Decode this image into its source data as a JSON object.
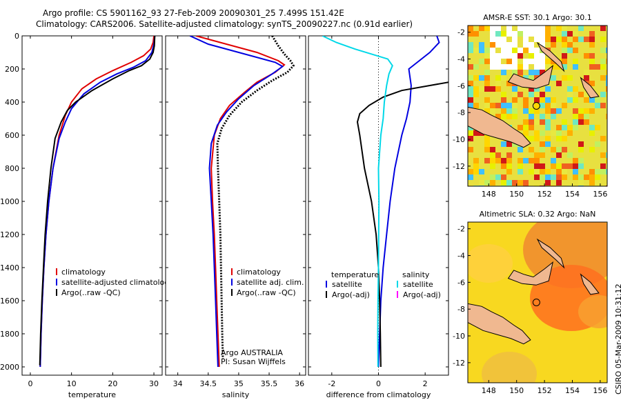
{
  "header": {
    "line1": "Argo profile: CS 5901162_93 27-Feb-2009 20090301_25 7.499S 151.42E",
    "line2": "Climatology: CARS2006. Satellite-adjusted climatology: synTS_20090227.nc (0.91d earlier)"
  },
  "chart_data": [
    {
      "type": "line",
      "name": "temperature",
      "xlabel": "temperature",
      "xlim": [
        -2,
        32
      ],
      "xticks": [
        0,
        10,
        20,
        30
      ],
      "ylim": [
        0,
        2050
      ],
      "yticks": [
        0,
        200,
        400,
        600,
        800,
        1000,
        1200,
        1400,
        1600,
        1800,
        2000
      ],
      "reversed_y": true,
      "legend": [
        "climatology",
        "satellite-adjusted climatology",
        "Argo(..raw -QC)"
      ],
      "series": [
        {
          "name": "climatology",
          "color": "#e00000",
          "points": [
            [
              30,
              0
            ],
            [
              29.8,
              40
            ],
            [
              29.2,
              80
            ],
            [
              27.5,
              120
            ],
            [
              24.5,
              160
            ],
            [
              20,
              210
            ],
            [
              16,
              260
            ],
            [
              12.5,
              320
            ],
            [
              10,
              400
            ],
            [
              8.5,
              480
            ],
            [
              7,
              600
            ],
            [
              5.5,
              800
            ],
            [
              4.5,
              1000
            ],
            [
              3.8,
              1200
            ],
            [
              3.3,
              1400
            ],
            [
              2.9,
              1600
            ],
            [
              2.6,
              1800
            ],
            [
              2.4,
              2000
            ]
          ]
        },
        {
          "name": "satellite",
          "color": "#0000e0",
          "points": [
            [
              30.2,
              0
            ],
            [
              30,
              50
            ],
            [
              29.5,
              100
            ],
            [
              28,
              150
            ],
            [
              25,
              190
            ],
            [
              21,
              230
            ],
            [
              17,
              280
            ],
            [
              13,
              350
            ],
            [
              10,
              440
            ],
            [
              8.5,
              520
            ],
            [
              7,
              620
            ],
            [
              5.5,
              800
            ],
            [
              4.5,
              1000
            ],
            [
              3.8,
              1200
            ],
            [
              3.3,
              1400
            ],
            [
              2.9,
              1600
            ],
            [
              2.6,
              1800
            ],
            [
              2.4,
              2000
            ]
          ]
        },
        {
          "name": "argo",
          "color": "#000000",
          "points": [
            [
              30.2,
              0
            ],
            [
              30.1,
              60
            ],
            [
              29.8,
              100
            ],
            [
              29,
              140
            ],
            [
              27,
              180
            ],
            [
              24,
              210
            ],
            [
              20,
              260
            ],
            [
              15,
              330
            ],
            [
              11,
              400
            ],
            [
              9,
              450
            ],
            [
              7.5,
              520
            ],
            [
              6,
              620
            ],
            [
              5,
              800
            ],
            [
              4.2,
              1000
            ],
            [
              3.6,
              1200
            ],
            [
              3.2,
              1400
            ],
            [
              2.8,
              1600
            ],
            [
              2.5,
              1800
            ],
            [
              2.3,
              1990
            ]
          ]
        }
      ]
    },
    {
      "type": "line",
      "name": "salinity",
      "xlabel": "salinity",
      "xlim": [
        33.8,
        36.1
      ],
      "xticks": [
        34,
        34.5,
        35,
        35.5,
        36
      ],
      "xtick_labels": [
        "34",
        "34.5",
        "35",
        "35.5",
        "36"
      ],
      "ylim": [
        0,
        2050
      ],
      "reversed_y": true,
      "legend": [
        "climatology",
        "satellite adj. clim.",
        "Argo(..raw -QC)"
      ],
      "annotation": [
        "Argo AUSTRALIA",
        "PI: Susan Wijffels"
      ],
      "series": [
        {
          "name": "climatology",
          "color": "#e00000",
          "points": [
            [
              34.3,
              0
            ],
            [
              34.7,
              40
            ],
            [
              35.3,
              100
            ],
            [
              35.65,
              150
            ],
            [
              35.75,
              175
            ],
            [
              35.6,
              220
            ],
            [
              35.3,
              280
            ],
            [
              35.1,
              340
            ],
            [
              34.85,
              420
            ],
            [
              34.7,
              500
            ],
            [
              34.6,
              600
            ],
            [
              34.55,
              800
            ],
            [
              34.57,
              1000
            ],
            [
              34.6,
              1200
            ],
            [
              34.62,
              1400
            ],
            [
              34.64,
              1600
            ],
            [
              34.66,
              1800
            ],
            [
              34.68,
              2000
            ]
          ]
        },
        {
          "name": "satellite",
          "color": "#0000e0",
          "points": [
            [
              34.2,
              0
            ],
            [
              34.5,
              50
            ],
            [
              35.1,
              110
            ],
            [
              35.6,
              160
            ],
            [
              35.72,
              185
            ],
            [
              35.55,
              230
            ],
            [
              35.25,
              300
            ],
            [
              35.0,
              380
            ],
            [
              34.8,
              460
            ],
            [
              34.65,
              540
            ],
            [
              34.55,
              650
            ],
            [
              34.52,
              800
            ],
            [
              34.55,
              1000
            ],
            [
              34.58,
              1200
            ],
            [
              34.6,
              1400
            ],
            [
              34.62,
              1600
            ],
            [
              34.64,
              1800
            ],
            [
              34.66,
              2000
            ]
          ]
        },
        {
          "name": "argo",
          "color": "#000000",
          "points": [
            [
              35.55,
              0
            ],
            [
              35.65,
              60
            ],
            [
              35.75,
              110
            ],
            [
              35.85,
              150
            ],
            [
              35.9,
              180
            ],
            [
              35.8,
              220
            ],
            [
              35.55,
              270
            ],
            [
              35.3,
              330
            ],
            [
              35.05,
              400
            ],
            [
              34.85,
              480
            ],
            [
              34.72,
              560
            ],
            [
              34.65,
              650
            ],
            [
              34.66,
              800
            ],
            [
              34.68,
              1000
            ],
            [
              34.7,
              1200
            ],
            [
              34.71,
              1400
            ],
            [
              34.72,
              1600
            ],
            [
              34.73,
              1800
            ],
            [
              34.74,
              1950
            ]
          ]
        }
      ]
    },
    {
      "type": "line",
      "name": "difference",
      "xlabel": "difference from climatology",
      "xlim": [
        -3,
        3
      ],
      "xticks": [
        -2,
        0,
        2
      ],
      "ylim": [
        0,
        2050
      ],
      "reversed_y": true,
      "legend_left_title": "temperature",
      "legend_right_title": "salinity",
      "legend_left": [
        "satellite",
        "Argo(-adj)"
      ],
      "legend_right": [
        "satellite",
        "Argo(-adj)"
      ],
      "series": [
        {
          "name": "temp-satellite",
          "color": "#0000e0",
          "points": [
            [
              2.5,
              0
            ],
            [
              2.6,
              40
            ],
            [
              2.2,
              100
            ],
            [
              1.3,
              200
            ],
            [
              1.4,
              300
            ],
            [
              1.35,
              400
            ],
            [
              1.2,
              500
            ],
            [
              1.0,
              600
            ],
            [
              0.7,
              800
            ],
            [
              0.5,
              1000
            ],
            [
              0.35,
              1200
            ],
            [
              0.2,
              1400
            ],
            [
              0.1,
              1600
            ],
            [
              0.05,
              1800
            ],
            [
              0.0,
              2000
            ]
          ]
        },
        {
          "name": "temp-argo",
          "color": "#000000",
          "points": [
            [
              3,
              280
            ],
            [
              2.2,
              300
            ],
            [
              1.0,
              330
            ],
            [
              0.2,
              370
            ],
            [
              -0.4,
              420
            ],
            [
              -0.8,
              470
            ],
            [
              -0.9,
              520
            ],
            [
              -0.8,
              600
            ],
            [
              -0.6,
              800
            ],
            [
              -0.3,
              1000
            ],
            [
              -0.1,
              1200
            ],
            [
              0.0,
              1400
            ],
            [
              0.05,
              1600
            ],
            [
              0.08,
              1800
            ],
            [
              0.1,
              2000
            ]
          ]
        },
        {
          "name": "sal-satellite",
          "color": "#00d8e8",
          "points": [
            [
              -2.4,
              0
            ],
            [
              -1.8,
              40
            ],
            [
              -1.0,
              80
            ],
            [
              0.4,
              140
            ],
            [
              0.6,
              180
            ],
            [
              0.45,
              230
            ],
            [
              0.35,
              300
            ],
            [
              0.25,
              400
            ],
            [
              0.2,
              500
            ],
            [
              0.1,
              600
            ],
            [
              0.0,
              800
            ],
            [
              0.02,
              1000
            ],
            [
              0.01,
              1200
            ],
            [
              0.0,
              1400
            ],
            [
              -0.02,
              1600
            ],
            [
              -0.03,
              1800
            ],
            [
              -0.02,
              2000
            ]
          ]
        },
        {
          "name": "sal-argo",
          "color": "#ff00ff",
          "points": []
        }
      ]
    },
    {
      "type": "heatmap",
      "name": "sst-map",
      "title": "AMSR-E SST: 30.1  Argo: 30.1",
      "xlim": [
        146.5,
        156.5
      ],
      "ylim": [
        -13.5,
        -1.5
      ],
      "xticks": [
        148,
        150,
        152,
        154,
        156
      ],
      "yticks": [
        -2,
        -4,
        -6,
        -8,
        -10,
        -12
      ],
      "marker": [
        151.42,
        -7.5
      ]
    },
    {
      "type": "heatmap",
      "name": "sla-map",
      "title": "Altimetric SLA: 0.32  Argo: NaN",
      "xlim": [
        146.5,
        156.5
      ],
      "ylim": [
        -13.5,
        -1.5
      ],
      "xticks": [
        148,
        150,
        152,
        154,
        156
      ],
      "yticks": [
        -2,
        -4,
        -6,
        -8,
        -10,
        -12
      ],
      "marker": [
        151.42,
        -7.5
      ]
    }
  ],
  "footer_vertical": "CSIRO 05-Mar-2009 10:31:12"
}
